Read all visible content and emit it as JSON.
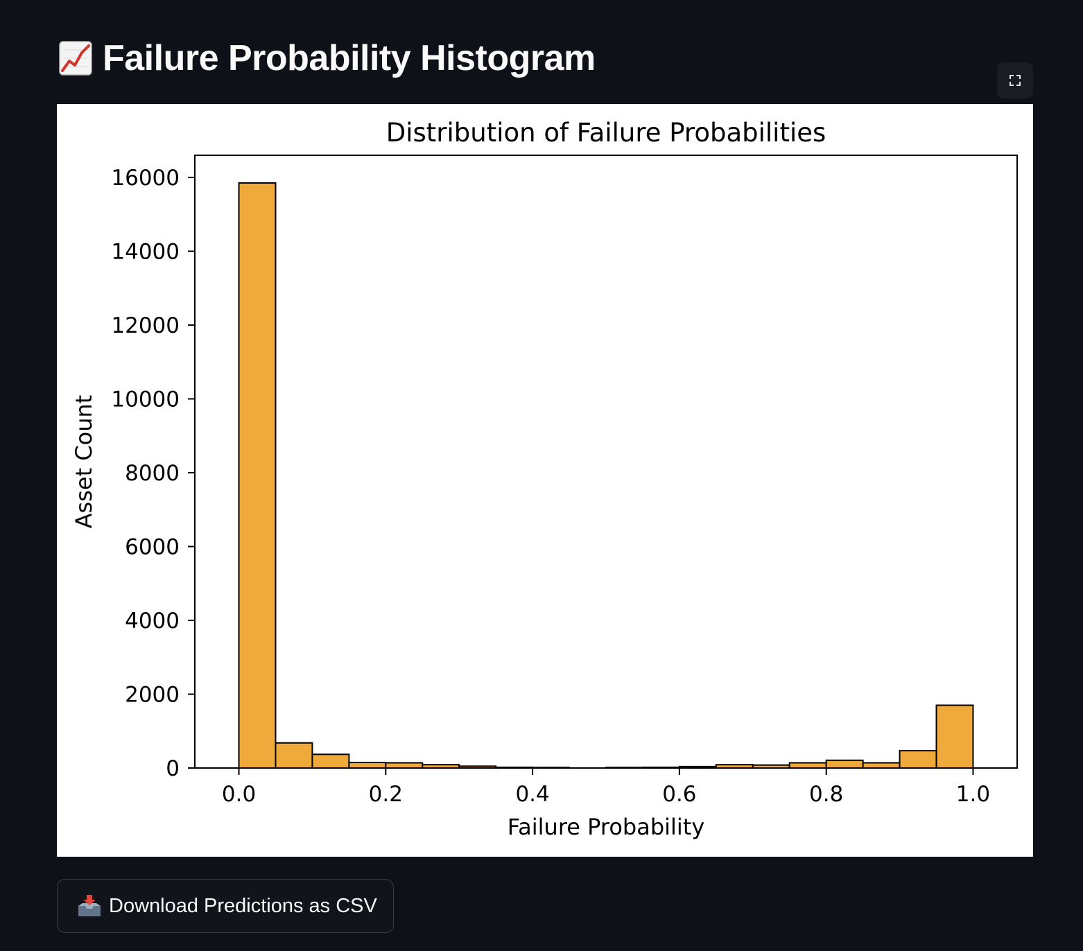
{
  "header": {
    "title": "Failure Probability Histogram",
    "title_icon": "chart-increasing-icon"
  },
  "toolbar": {
    "fullscreen_icon": "fullscreen-expand-icon"
  },
  "download": {
    "label": "Download Predictions as CSV",
    "icon": "inbox-tray-icon"
  },
  "colors": {
    "background": "#0e1117",
    "bar_fill": "#f0aa3c",
    "bar_edge": "#000000"
  },
  "chart_data": {
    "type": "bar",
    "title": "Distribution of Failure Probabilities",
    "xlabel": "Failure Probability",
    "ylabel": "Asset Count",
    "xlim": [
      -0.06,
      1.06
    ],
    "ylim": [
      0,
      16600
    ],
    "xticks": [
      0.0,
      0.2,
      0.4,
      0.6,
      0.8,
      1.0
    ],
    "xtick_labels": [
      "0.0",
      "0.2",
      "0.4",
      "0.6",
      "0.8",
      "1.0"
    ],
    "yticks": [
      0,
      2000,
      4000,
      6000,
      8000,
      10000,
      12000,
      14000,
      16000
    ],
    "ytick_labels": [
      "0",
      "2000",
      "4000",
      "6000",
      "8000",
      "10000",
      "12000",
      "14000",
      "16000"
    ],
    "grid": false,
    "bin_edges": [
      0.0,
      0.05,
      0.1,
      0.15,
      0.2,
      0.25,
      0.3,
      0.35,
      0.4,
      0.45,
      0.5,
      0.55,
      0.6,
      0.65,
      0.7,
      0.75,
      0.8,
      0.85,
      0.9,
      0.95,
      1.0
    ],
    "values": [
      15850,
      680,
      370,
      150,
      140,
      90,
      50,
      20,
      15,
      0,
      15,
      20,
      40,
      90,
      80,
      140,
      210,
      140,
      470,
      1700
    ]
  }
}
